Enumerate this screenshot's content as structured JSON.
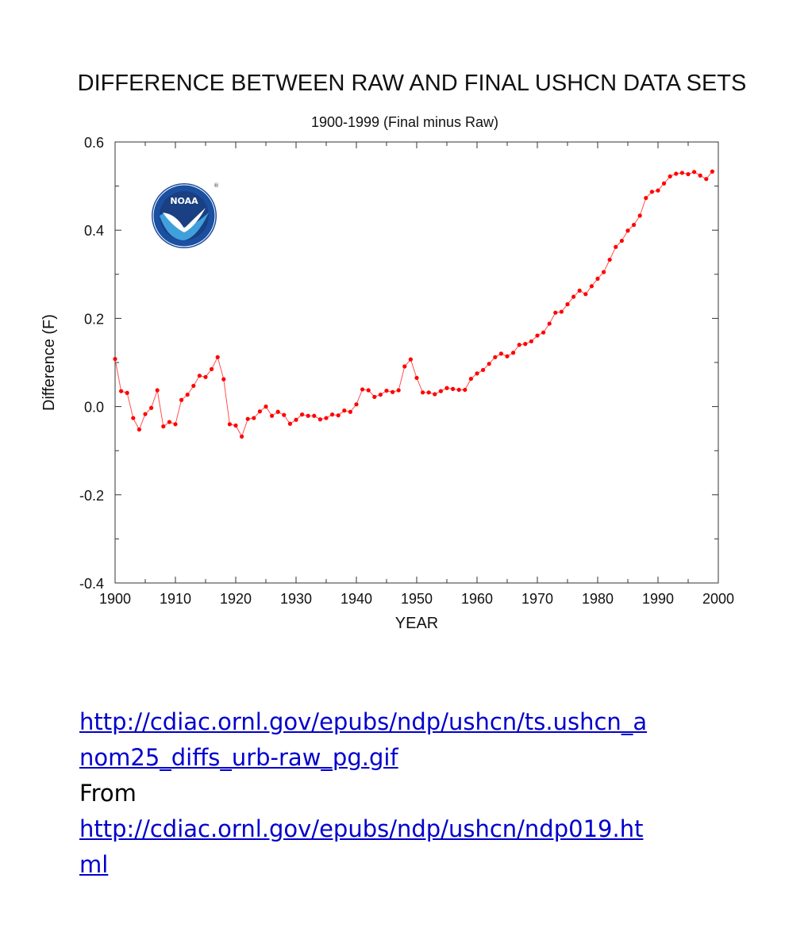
{
  "chart_data": {
    "type": "line",
    "title": "DIFFERENCE BETWEEN RAW AND FINAL USHCN DATA SETS",
    "subtitle": "1900-1999 (Final minus Raw)",
    "xlabel": "YEAR",
    "ylabel": "Difference (F)",
    "xlim": [
      1900,
      2000
    ],
    "ylim": [
      -0.4,
      0.6
    ],
    "x_ticks": [
      "1900",
      "1910",
      "1920",
      "1930",
      "1940",
      "1950",
      "1960",
      "1970",
      "1980",
      "1990",
      "2000"
    ],
    "y_ticks": [
      "-0.4",
      "-0.2",
      "0.0",
      "0.2",
      "0.4",
      "0.6"
    ],
    "grid": false,
    "series_color": "#ff0000",
    "x": [
      1900,
      1901,
      1902,
      1903,
      1904,
      1905,
      1906,
      1907,
      1908,
      1909,
      1910,
      1911,
      1912,
      1913,
      1914,
      1915,
      1916,
      1917,
      1918,
      1919,
      1920,
      1921,
      1922,
      1923,
      1924,
      1925,
      1926,
      1927,
      1928,
      1929,
      1930,
      1931,
      1932,
      1933,
      1934,
      1935,
      1936,
      1937,
      1938,
      1939,
      1940,
      1941,
      1942,
      1943,
      1944,
      1945,
      1946,
      1947,
      1948,
      1949,
      1950,
      1951,
      1952,
      1953,
      1954,
      1955,
      1956,
      1957,
      1958,
      1959,
      1960,
      1961,
      1962,
      1963,
      1964,
      1965,
      1966,
      1967,
      1968,
      1969,
      1970,
      1971,
      1972,
      1973,
      1974,
      1975,
      1976,
      1977,
      1978,
      1979,
      1980,
      1981,
      1982,
      1983,
      1984,
      1985,
      1986,
      1987,
      1988,
      1989,
      1990,
      1991,
      1992,
      1993,
      1994,
      1995,
      1996,
      1997,
      1998,
      1999
    ],
    "values": [
      0.108,
      0.035,
      0.031,
      -0.026,
      -0.052,
      -0.017,
      -0.003,
      0.037,
      -0.045,
      -0.035,
      -0.04,
      0.015,
      0.027,
      0.047,
      0.07,
      0.067,
      0.085,
      0.112,
      0.062,
      -0.04,
      -0.043,
      -0.068,
      -0.028,
      -0.026,
      -0.011,
      0.0,
      -0.021,
      -0.012,
      -0.019,
      -0.039,
      -0.03,
      -0.018,
      -0.021,
      -0.021,
      -0.029,
      -0.026,
      -0.018,
      -0.02,
      -0.009,
      -0.012,
      0.005,
      0.039,
      0.037,
      0.022,
      0.027,
      0.036,
      0.033,
      0.037,
      0.091,
      0.107,
      0.065,
      0.032,
      0.032,
      0.028,
      0.035,
      0.042,
      0.04,
      0.038,
      0.038,
      0.063,
      0.075,
      0.083,
      0.097,
      0.112,
      0.12,
      0.114,
      0.122,
      0.14,
      0.142,
      0.148,
      0.161,
      0.168,
      0.188,
      0.213,
      0.215,
      0.232,
      0.249,
      0.263,
      0.255,
      0.273,
      0.29,
      0.305,
      0.333,
      0.362,
      0.376,
      0.399,
      0.412,
      0.433,
      0.473,
      0.487,
      0.49,
      0.506,
      0.522,
      0.528,
      0.53,
      0.527,
      0.532,
      0.524,
      0.516,
      0.533
    ]
  },
  "links": {
    "link1": "http://cdiac.ornl.gov/epubs/ndp/ushcn/ts.ushcn_anom25_diffs_urb-raw_pg.gif",
    "from": "From",
    "link2": "http://cdiac.ornl.gov/epubs/ndp/ushcn/ndp019.html"
  },
  "logo": {
    "text": "NOAA"
  }
}
